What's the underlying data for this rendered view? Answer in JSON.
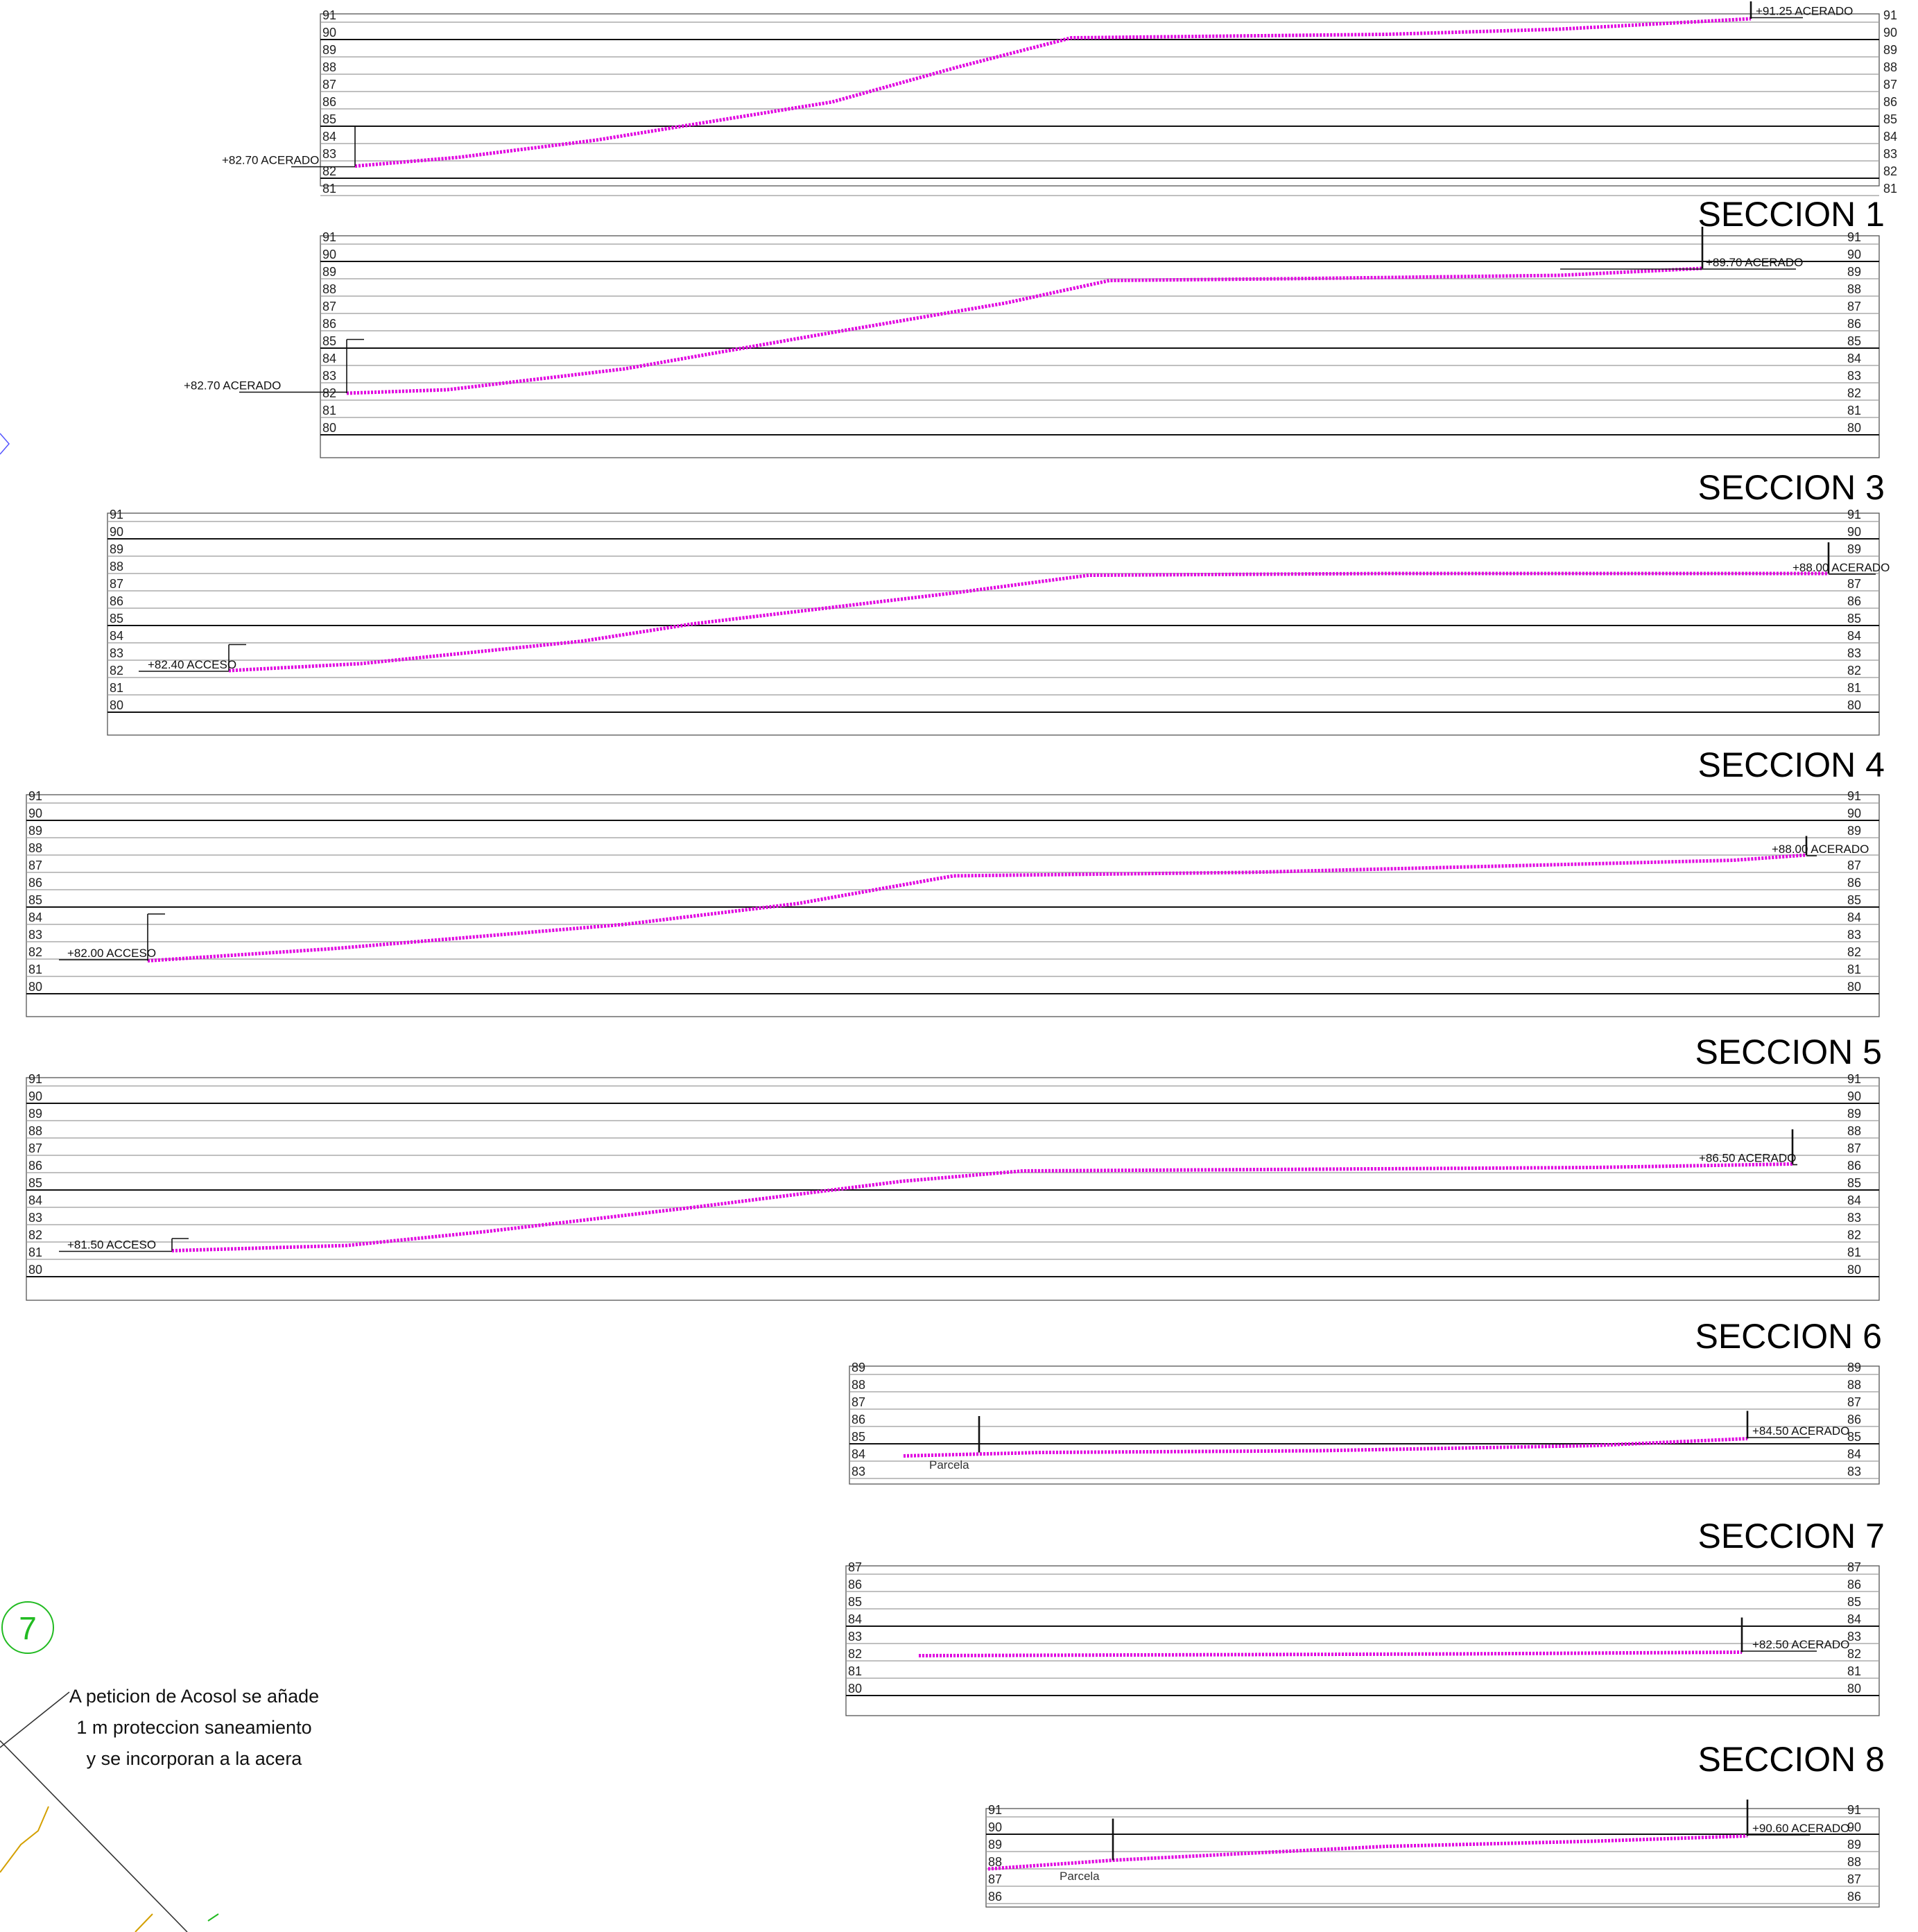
{
  "sections": [
    {
      "id": "top",
      "title": "",
      "top_elev": 91,
      "bottom_elev": 81,
      "left_labels": [
        "91",
        "90",
        "89",
        "88",
        "87",
        "86",
        "85",
        "84",
        "83",
        "82",
        "81"
      ],
      "right_labels": [
        "91",
        "90",
        "89",
        "88",
        "87",
        "86",
        "85",
        "84",
        "83",
        "82",
        "81"
      ],
      "callouts": [
        {
          "text": "+82.70 ACERADO",
          "elevation": 82.7
        },
        {
          "text": "+91.25 ACERADO",
          "elevation": 91.25
        }
      ],
      "parcel_label": ""
    },
    {
      "id": "seccion-1",
      "title": "SECCION 1",
      "top_elev": 91,
      "bottom_elev": 80,
      "left_labels": [
        "91",
        "90",
        "89",
        "88",
        "87",
        "86",
        "85",
        "84",
        "83",
        "82",
        "81",
        "80"
      ],
      "right_labels": [
        "91",
        "90",
        "89",
        "88",
        "87",
        "86",
        "85",
        "84",
        "83",
        "82",
        "81",
        "80"
      ],
      "callouts": [
        {
          "text": "+82.70 ACERADO",
          "elevation": 82.7
        },
        {
          "text": "+89.70 ACERADO",
          "elevation": 89.7
        }
      ],
      "parcel_label": ""
    },
    {
      "id": "seccion-3",
      "title": "SECCION 3",
      "top_elev": 91,
      "bottom_elev": 80,
      "left_labels": [
        "91",
        "90",
        "89",
        "88",
        "87",
        "86",
        "85",
        "84",
        "83",
        "82",
        "81",
        "80"
      ],
      "right_labels": [
        "91",
        "90",
        "89",
        "",
        "87",
        "86",
        "85",
        "84",
        "83",
        "82",
        "81",
        "80"
      ],
      "callouts": [
        {
          "text": "+82.40 ACCESO",
          "elevation": 82.4
        },
        {
          "text": "+88.00 ACERADO",
          "elevation": 88.0
        }
      ],
      "parcel_label": ""
    },
    {
      "id": "seccion-4",
      "title": "SECCION 4",
      "top_elev": 91,
      "bottom_elev": 80,
      "left_labels": [
        "91",
        "90",
        "89",
        "88",
        "87",
        "86",
        "85",
        "84",
        "83",
        "82",
        "81",
        "80"
      ],
      "right_labels": [
        "91",
        "90",
        "89",
        "",
        "87",
        "86",
        "85",
        "84",
        "83",
        "82",
        "81",
        "80"
      ],
      "callouts": [
        {
          "text": "+82.00 ACCESO",
          "elevation": 82.0
        },
        {
          "text": "+88.00 ACERADO",
          "elevation": 88.0
        }
      ],
      "parcel_label": ""
    },
    {
      "id": "seccion-5",
      "title": "SECCION 5",
      "top_elev": 91,
      "bottom_elev": 80,
      "left_labels": [
        "91",
        "90",
        "89",
        "88",
        "87",
        "86",
        "85",
        "84",
        "83",
        "82",
        "81",
        "80"
      ],
      "right_labels": [
        "91",
        "90",
        "89",
        "88",
        "87",
        "86",
        "85",
        "84",
        "83",
        "82",
        "81",
        "80"
      ],
      "callouts": [
        {
          "text": "+81.50 ACCESO",
          "elevation": 81.5
        },
        {
          "text": "+86.50 ACERADO",
          "elevation": 86.5
        }
      ],
      "parcel_label": ""
    },
    {
      "id": "seccion-6",
      "title": "SECCION 6",
      "top_elev": 89,
      "bottom_elev": 83,
      "left_labels": [
        "89",
        "88",
        "87",
        "86",
        "85",
        "84",
        "83"
      ],
      "right_labels": [
        "89",
        "88",
        "87",
        "86",
        "85",
        "84",
        "83"
      ],
      "callouts": [
        {
          "text": "+84.50 ACERADO",
          "elevation": 84.5
        }
      ],
      "parcel_label": "Parcela"
    },
    {
      "id": "seccion-7",
      "title": "SECCION 7",
      "top_elev": 87,
      "bottom_elev": 80,
      "left_labels": [
        "87",
        "86",
        "85",
        "84",
        "83",
        "82",
        "81",
        "80"
      ],
      "right_labels": [
        "87",
        "86",
        "85",
        "84",
        "83",
        "82",
        "81",
        "80"
      ],
      "callouts": [
        {
          "text": "+82.50 ACERADO",
          "elevation": 82.5
        }
      ],
      "parcel_label": ""
    },
    {
      "id": "seccion-8",
      "title": "SECCION 8",
      "top_elev": 91,
      "bottom_elev": 86,
      "left_labels": [
        "91",
        "90",
        "89",
        "88",
        "87",
        "86"
      ],
      "right_labels": [
        "91",
        "90",
        "89",
        "88",
        "87",
        "86"
      ],
      "callouts": [
        {
          "text": "+90.60 ACERADO",
          "elevation": 90.6
        }
      ],
      "parcel_label": "Parcela"
    }
  ],
  "revision_marker": "7",
  "revision_note": [
    "A peticion de Acosol se añade",
    "1 m proteccion saneamiento",
    "y se incorporan a la acera"
  ],
  "colors": {
    "profile": "#e000e0",
    "grid_minor": "#9a9a9a",
    "grid_major": "#111111",
    "revision_marker": "#22bb22",
    "plan_trace": "#d4a000"
  }
}
